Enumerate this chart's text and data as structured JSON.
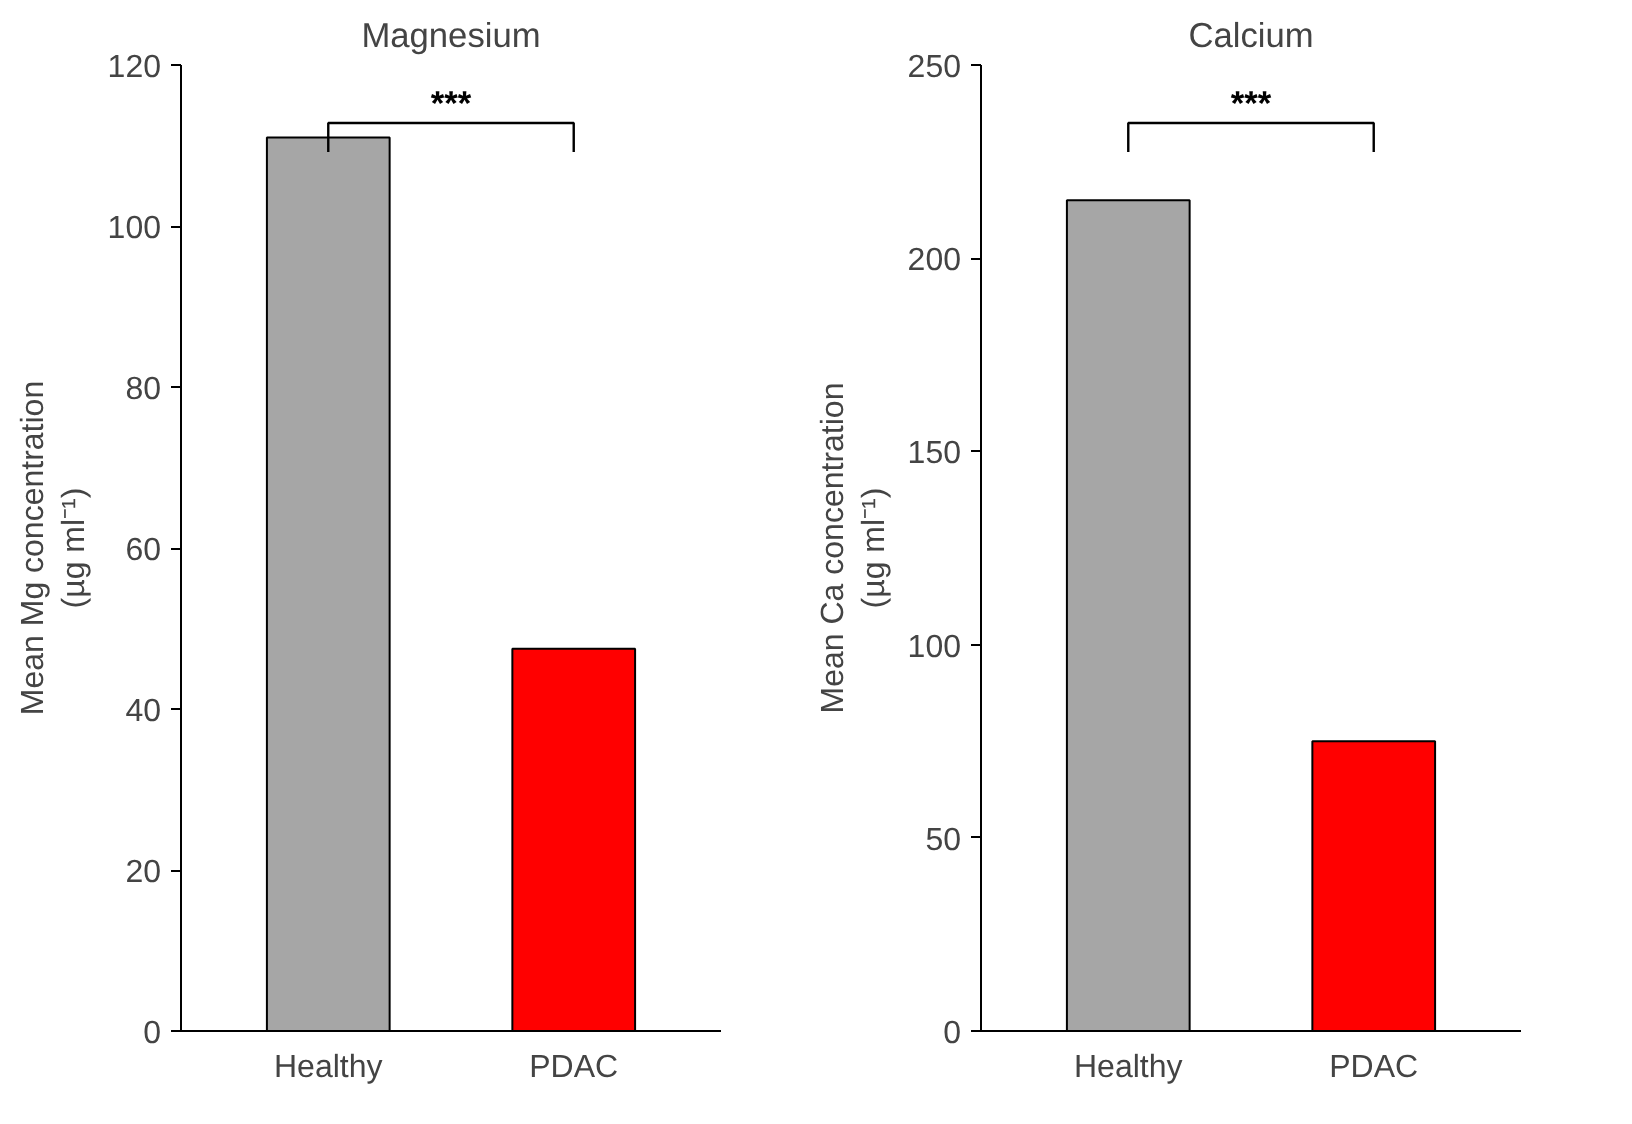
{
  "chart_data": [
    {
      "type": "bar",
      "title": "Magnesium",
      "ylabel": "Mean Mg concentration\n(µg ml⁻¹)",
      "categories": [
        "Healthy",
        "PDAC"
      ],
      "values": [
        111,
        47.5
      ],
      "colors": [
        "#a6a6a6",
        "#ff0000"
      ],
      "ylim": [
        0,
        120
      ],
      "yticks": [
        0,
        20,
        40,
        60,
        80,
        100,
        120
      ],
      "grid": false,
      "annotations": [
        "***"
      ]
    },
    {
      "type": "bar",
      "title": "Calcium",
      "ylabel": "Mean Ca concentration\n(µg ml⁻¹)",
      "categories": [
        "Healthy",
        "PDAC"
      ],
      "values": [
        215,
        75
      ],
      "colors": [
        "#a6a6a6",
        "#ff0000"
      ],
      "ylim": [
        0,
        250
      ],
      "yticks": [
        0,
        50,
        100,
        150,
        200,
        250
      ],
      "grid": false,
      "annotations": [
        "***"
      ]
    }
  ]
}
